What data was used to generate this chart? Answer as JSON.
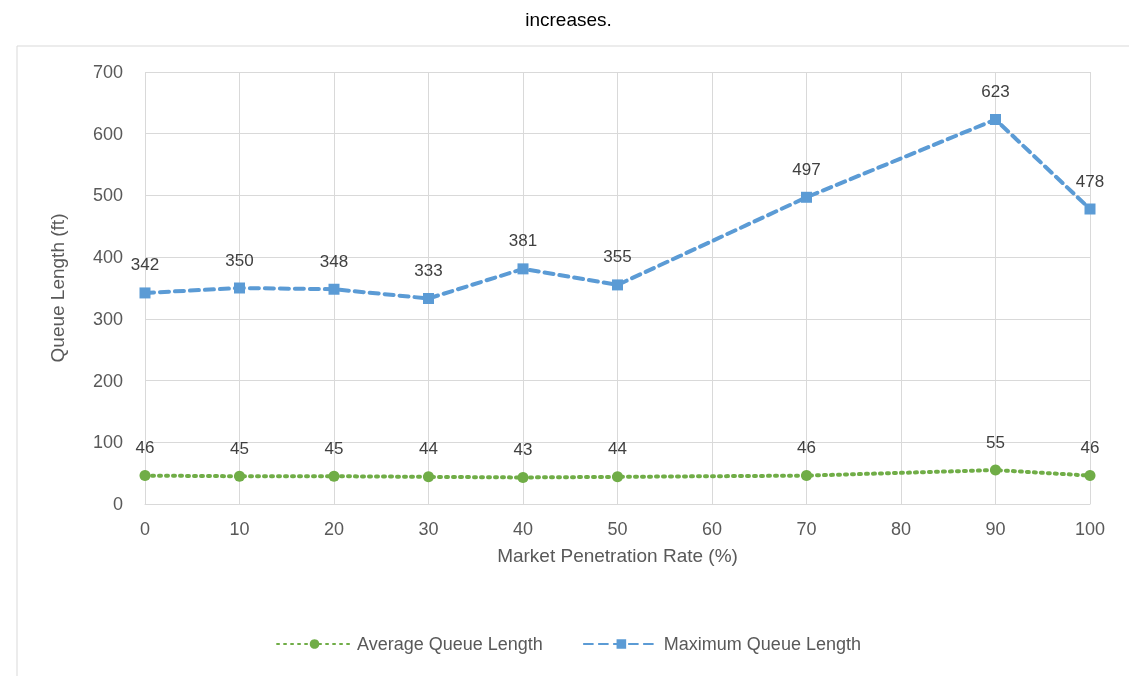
{
  "chart_data": {
    "type": "line",
    "annotations": [
      "increases."
    ],
    "xlabel": "Market Penetration Rate (%)",
    "ylabel": "Queue Length (ft)",
    "x": [
      0,
      10,
      20,
      30,
      40,
      50,
      70,
      90,
      100
    ],
    "series": [
      {
        "name": "Average Queue Length",
        "color": "#70ad47",
        "values": [
          46,
          45,
          45,
          44,
          43,
          44,
          46,
          55,
          46
        ],
        "marker": "circle",
        "line_style": "dotted"
      },
      {
        "name": "Maximum Queue Length",
        "color": "#5b9bd5",
        "values": [
          342,
          350,
          348,
          333,
          381,
          355,
          497,
          623,
          478
        ],
        "marker": "square",
        "line_style": "dashed"
      }
    ],
    "xlim": [
      0,
      100
    ],
    "xticks": [
      0,
      10,
      20,
      30,
      40,
      50,
      60,
      70,
      80,
      90,
      100
    ],
    "ylim": [
      0,
      700
    ],
    "yticks": [
      0,
      100,
      200,
      300,
      400,
      500,
      600,
      700
    ],
    "grid": true,
    "legend": "bottom",
    "data_labels": true
  }
}
